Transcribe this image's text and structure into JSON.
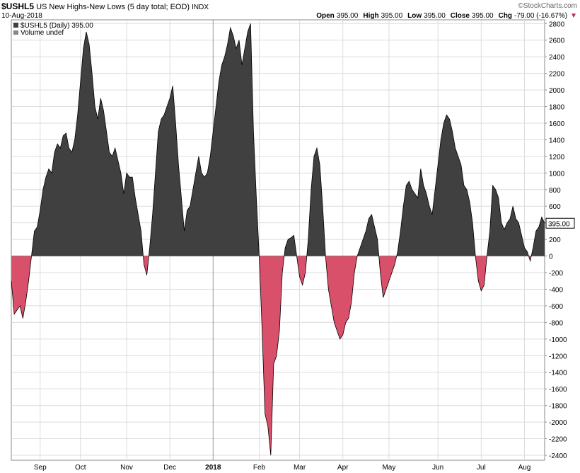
{
  "header": {
    "symbol": "$USHL5",
    "name": "US New Highs-New Lows (5 day total; EOD)",
    "exchange": "INDX",
    "date": "10-Aug-2018",
    "copyright": "©StockCharts.com",
    "quote": [
      {
        "label": "Open",
        "value": "395.00"
      },
      {
        "label": "High",
        "value": "395.00"
      },
      {
        "label": "Low",
        "value": "395.00"
      },
      {
        "label": "Close",
        "value": "395.00"
      },
      {
        "label": "Chg",
        "value": "-79.00 (-16.67%)"
      }
    ],
    "legend_main": "$USHL5 (Daily) 395.00",
    "legend_volume": "Volume undef"
  },
  "chart_data": {
    "type": "area",
    "color_positive": "#404040",
    "color_negative": "#d9506a",
    "line_color": "#000000",
    "price_tag": "395.00",
    "categories": [
      null,
      null,
      null,
      null,
      null,
      null,
      null,
      null,
      null,
      null,
      "Sep",
      null,
      null,
      null,
      null,
      null,
      null,
      null,
      null,
      null,
      null,
      null,
      null,
      null,
      "Oct",
      null,
      null,
      null,
      null,
      null,
      null,
      null,
      null,
      null,
      null,
      null,
      null,
      null,
      null,
      null,
      "Nov",
      null,
      null,
      null,
      null,
      null,
      null,
      null,
      null,
      null,
      null,
      null,
      null,
      null,
      null,
      "Dec",
      null,
      null,
      null,
      null,
      null,
      null,
      null,
      null,
      null,
      null,
      null,
      null,
      null,
      null,
      "2018",
      null,
      null,
      null,
      null,
      null,
      null,
      null,
      null,
      null,
      null,
      null,
      null,
      null,
      null,
      null,
      "Feb",
      null,
      null,
      null,
      null,
      null,
      null,
      null,
      null,
      null,
      null,
      null,
      null,
      null,
      "Mar",
      null,
      null,
      null,
      null,
      null,
      null,
      null,
      null,
      null,
      null,
      null,
      null,
      null,
      null,
      "Apr",
      null,
      null,
      null,
      null,
      null,
      null,
      null,
      null,
      null,
      null,
      null,
      null,
      null,
      null,
      null,
      "May",
      null,
      null,
      null,
      null,
      null,
      null,
      null,
      null,
      null,
      null,
      null,
      null,
      null,
      null,
      null,
      null,
      "Jun",
      null,
      null,
      null,
      null,
      null,
      null,
      null,
      null,
      null,
      null,
      null,
      null,
      null,
      null,
      "Jul",
      null,
      null,
      null,
      null,
      null,
      null,
      null,
      null,
      null,
      null,
      null,
      null,
      null,
      null,
      "Aug",
      null,
      null,
      null,
      null,
      null,
      null,
      null
    ],
    "values": [
      -300,
      -700,
      -650,
      -600,
      -750,
      -550,
      -300,
      0,
      300,
      350,
      550,
      800,
      950,
      1050,
      1000,
      1250,
      1350,
      1300,
      1450,
      1480,
      1300,
      1250,
      1400,
      1700,
      2100,
      2500,
      2700,
      2550,
      2200,
      1800,
      1650,
      1900,
      1750,
      1500,
      1250,
      1200,
      1300,
      1150,
      1000,
      750,
      1000,
      950,
      950,
      700,
      500,
      300,
      -100,
      -230,
      100,
      500,
      1000,
      1500,
      1650,
      1700,
      1800,
      1900,
      2050,
      1600,
      1100,
      700,
      300,
      550,
      600,
      800,
      1000,
      1200,
      1000,
      950,
      1000,
      1200,
      1500,
      1800,
      2100,
      2300,
      2400,
      2550,
      2750,
      2650,
      2500,
      2600,
      2300,
      2500,
      2700,
      2800,
      1500,
      700,
      0,
      -900,
      -1900,
      -2050,
      -2400,
      -1300,
      -1200,
      -900,
      -200,
      100,
      200,
      220,
      250,
      0,
      -250,
      -350,
      -200,
      200,
      800,
      1200,
      1300,
      1100,
      600,
      0,
      -400,
      -600,
      -800,
      -900,
      -1000,
      -950,
      -800,
      -750,
      -550,
      -200,
      0,
      100,
      200,
      300,
      450,
      500,
      350,
      200,
      -200,
      -500,
      -400,
      -300,
      -200,
      -100,
      50,
      300,
      600,
      850,
      900,
      800,
      750,
      700,
      1050,
      850,
      750,
      600,
      500,
      800,
      1100,
      1400,
      1600,
      1700,
      1650,
      1500,
      1300,
      1200,
      1100,
      850,
      800,
      650,
      400,
      0,
      -300,
      -420,
      -350,
      0,
      300,
      850,
      800,
      700,
      400,
      320,
      400,
      450,
      600,
      450,
      400,
      250,
      100,
      50,
      -60,
      100,
      300,
      350,
      470,
      395
    ],
    "ylim": [
      -2460,
      2845
    ],
    "yticks": [
      -2400,
      -2200,
      -2000,
      -1800,
      -1600,
      -1400,
      -1200,
      -1000,
      -800,
      -600,
      -400,
      -200,
      0,
      200,
      400,
      600,
      800,
      1000,
      1200,
      1400,
      1600,
      1800,
      2000,
      2200,
      2400,
      2600,
      2800
    ],
    "grid": true
  }
}
